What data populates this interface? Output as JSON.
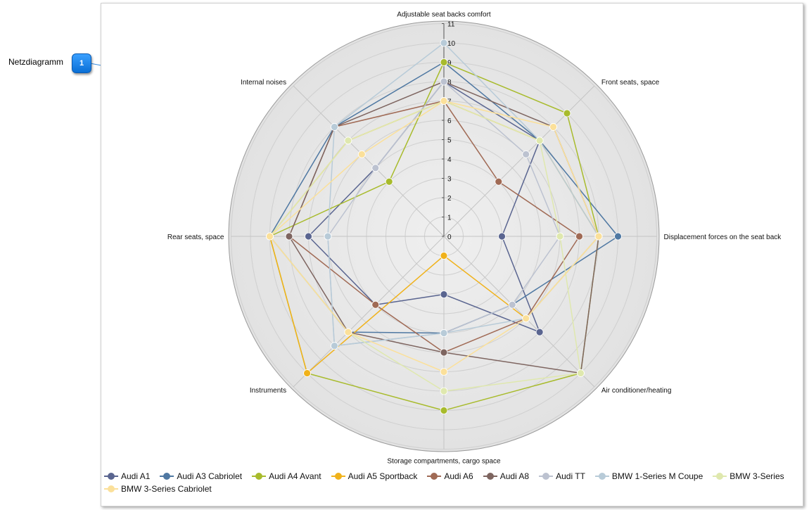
{
  "callout": {
    "label": "Netzdiagramm",
    "badge": "1"
  },
  "chart_data": {
    "type": "radar",
    "axes": [
      "Adjustable seat backs comfort",
      "Front seats, space",
      "Displacement forces on the seat back",
      "Air conditioner/heating",
      "Storage compartments, cargo space",
      "Instruments",
      "Rear seats, space",
      "Internal noises"
    ],
    "ticks": [
      0,
      1,
      2,
      3,
      4,
      5,
      6,
      7,
      8,
      9,
      10,
      11
    ],
    "range": [
      0,
      11
    ],
    "grid": true,
    "legend_position": "bottom",
    "series": [
      {
        "name": "Audi A1",
        "color": "#5a6590",
        "values": [
          8,
          7,
          3,
          7,
          3,
          5,
          7,
          5
        ]
      },
      {
        "name": "Audi A3 Cabriolet",
        "color": "#4f78a2",
        "values": [
          9,
          7,
          9,
          5,
          5,
          7,
          9,
          8
        ]
      },
      {
        "name": "Audi A4 Avant",
        "color": "#a8bb2c",
        "values": [
          9,
          9,
          8,
          10,
          9,
          10,
          9,
          4
        ]
      },
      {
        "name": "Audi A5 Sportback",
        "color": "#f0b21b",
        "values": [
          7,
          7,
          8,
          6,
          1,
          10,
          9,
          7
        ]
      },
      {
        "name": "Audi A6",
        "color": "#a06a55",
        "values": [
          7,
          4,
          7,
          6,
          6,
          5,
          8,
          8
        ]
      },
      {
        "name": "Audi A8",
        "color": "#7e6560",
        "values": [
          8,
          8,
          8,
          10,
          6,
          7,
          8,
          8
        ]
      },
      {
        "name": "Audi TT",
        "color": "#bcc2d0",
        "values": [
          8,
          6,
          6,
          5,
          5,
          8,
          6,
          5
        ]
      },
      {
        "name": "BMW 1-Series M Coupe",
        "color": "#b8cbd8",
        "values": [
          10,
          7,
          8,
          6,
          5,
          8,
          6,
          8
        ]
      },
      {
        "name": "BMW 3-Series",
        "color": "#dfe8ae",
        "values": [
          7,
          7,
          6,
          10,
          8,
          7,
          9,
          7
        ]
      },
      {
        "name": "BMW 3-Series Cabriolet",
        "color": "#fbe09a",
        "values": [
          7,
          8,
          8,
          6,
          7,
          7,
          9,
          6
        ]
      }
    ]
  }
}
